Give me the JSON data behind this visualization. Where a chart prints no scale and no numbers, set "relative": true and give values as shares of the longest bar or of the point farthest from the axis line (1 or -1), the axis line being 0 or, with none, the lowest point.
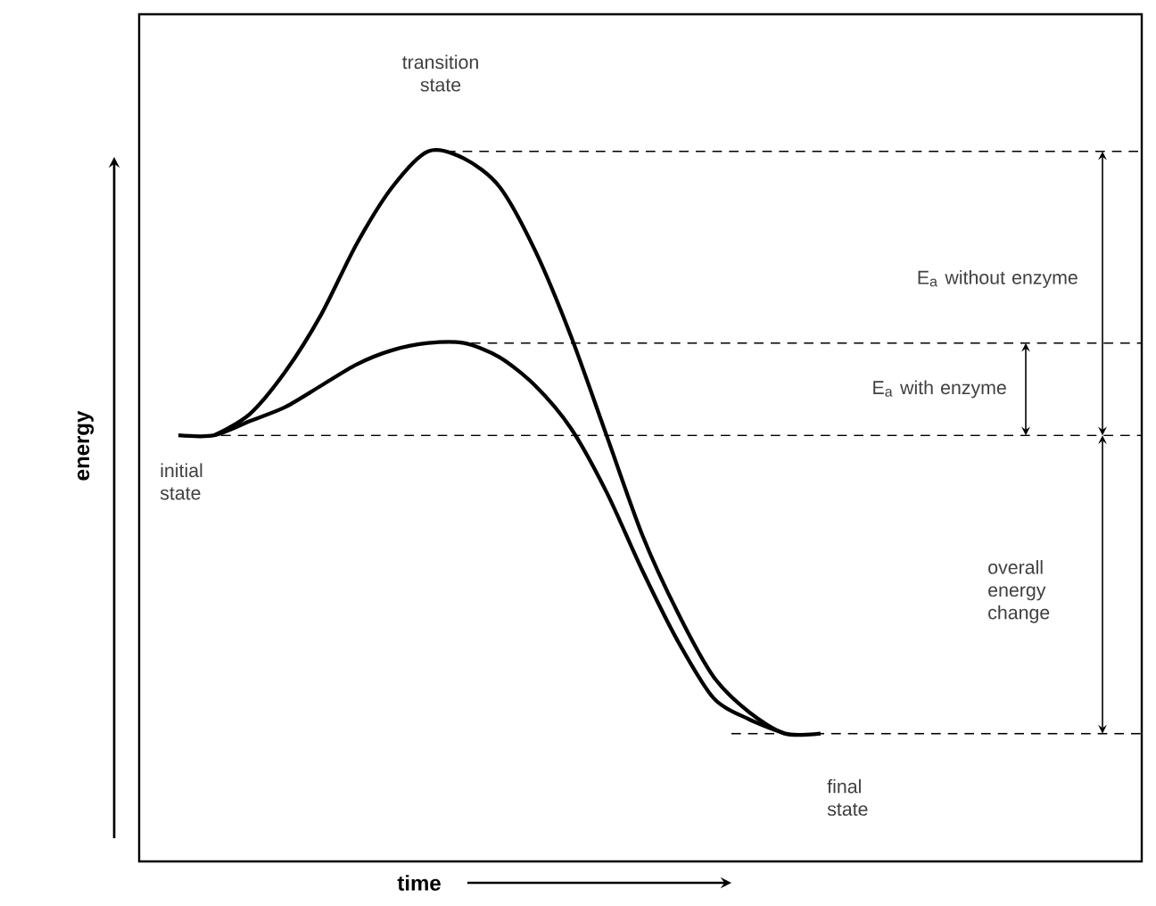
{
  "chart_data": {
    "type": "line",
    "relative": true,
    "xlabel": "time",
    "ylabel": "energy",
    "marker": "none",
    "line_style": "solid",
    "categories": [
      null,
      null,
      null,
      null,
      null,
      null,
      null,
      null,
      null,
      null,
      null,
      null,
      null,
      null,
      null,
      null,
      null,
      null,
      null
    ],
    "series": [
      {
        "color": "#000000",
        "values": [
          null,
          0.6,
          0.63,
          0.69,
          0.77,
          0.87,
          0.95,
          1.0,
          0.99,
          0.95,
          0.86,
          0.74,
          0.6,
          0.46,
          0.35,
          0.26,
          0.21,
          0.18,
          0.18
        ]
      },
      {
        "color": "#000000",
        "values": [
          0.6,
          0.6,
          0.62,
          0.64,
          0.67,
          0.7,
          0.72,
          0.73,
          0.73,
          0.71,
          0.67,
          0.61,
          0.52,
          0.41,
          0.31,
          0.23,
          0.2,
          0.18,
          null
        ]
      }
    ],
    "ref_lines": [
      {
        "axis": "y",
        "value": 0.6,
        "line_style": "dashed",
        "color": "#000000"
      },
      {
        "axis": "y",
        "value": 1.0,
        "line_style": "dashed",
        "color": "#000000"
      },
      {
        "axis": "y",
        "value": 0.73,
        "line_style": "dashed",
        "color": "#000000"
      },
      {
        "axis": "y",
        "value": 0.18,
        "line_style": "dashed",
        "color": "#000000"
      }
    ],
    "annotations": [
      "transition state",
      "E$_{a}$ without enzyme",
      "E$_{a}$ with enzyme",
      "initial state",
      "overall energy change",
      "final state"
    ]
  }
}
